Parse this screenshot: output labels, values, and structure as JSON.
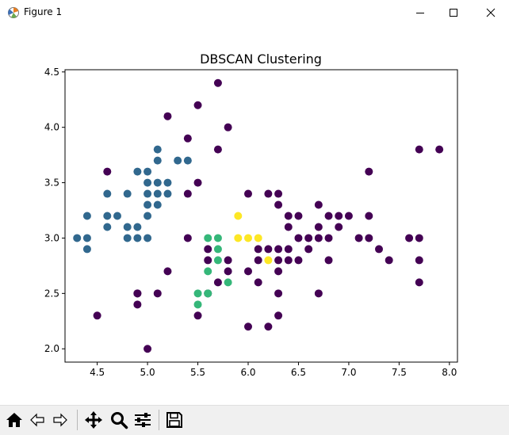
{
  "window": {
    "title": "Figure 1"
  },
  "toolbar": {
    "buttons": [
      "home-icon",
      "back-icon",
      "forward-icon",
      "pan-icon",
      "zoom-icon",
      "configure-subplots-icon",
      "save-icon"
    ]
  },
  "chart_data": {
    "type": "scatter",
    "title": "DBSCAN Clustering",
    "xlabel": "",
    "ylabel": "",
    "xlim": [
      4.18,
      8.08
    ],
    "ylim": [
      1.88,
      4.52
    ],
    "x_ticks": [
      "4.5",
      "5.0",
      "5.5",
      "6.0",
      "6.5",
      "7.0",
      "7.5",
      "8.0"
    ],
    "y_ticks": [
      "2.0",
      "2.5",
      "3.0",
      "3.5",
      "4.0",
      "4.5"
    ],
    "grid": false,
    "colors": {
      "noise": "#440154",
      "cluster0": "#31688e",
      "cluster1": "#35b779",
      "cluster2": "#fde725"
    },
    "series": [
      {
        "color": "#440154",
        "points": [
          [
            5.7,
            4.4
          ],
          [
            5.5,
            4.2
          ],
          [
            5.2,
            4.1
          ],
          [
            5.8,
            4.0
          ],
          [
            5.4,
            3.9
          ],
          [
            5.7,
            3.8
          ],
          [
            7.7,
            3.8
          ],
          [
            7.9,
            3.8
          ],
          [
            4.6,
            3.6
          ],
          [
            7.2,
            3.6
          ],
          [
            5.5,
            3.5
          ],
          [
            5.4,
            3.4
          ],
          [
            6.0,
            3.4
          ],
          [
            6.2,
            3.4
          ],
          [
            6.3,
            3.4
          ],
          [
            6.3,
            3.3
          ],
          [
            6.7,
            3.3
          ],
          [
            6.4,
            3.2
          ],
          [
            6.5,
            3.2
          ],
          [
            6.8,
            3.2
          ],
          [
            6.9,
            3.2
          ],
          [
            7.0,
            3.2
          ],
          [
            7.2,
            3.2
          ],
          [
            6.4,
            3.1
          ],
          [
            6.7,
            3.1
          ],
          [
            6.9,
            3.1
          ],
          [
            4.9,
            2.5
          ],
          [
            5.4,
            3.0
          ],
          [
            6.5,
            3.0
          ],
          [
            6.6,
            3.0
          ],
          [
            6.7,
            3.0
          ],
          [
            6.8,
            3.0
          ],
          [
            7.1,
            3.0
          ],
          [
            7.2,
            3.0
          ],
          [
            7.6,
            3.0
          ],
          [
            7.7,
            3.0
          ],
          [
            5.6,
            2.9
          ],
          [
            6.1,
            2.9
          ],
          [
            6.2,
            2.9
          ],
          [
            6.3,
            2.9
          ],
          [
            6.4,
            2.9
          ],
          [
            6.6,
            2.9
          ],
          [
            7.3,
            2.9
          ],
          [
            5.6,
            2.8
          ],
          [
            5.8,
            2.8
          ],
          [
            6.1,
            2.8
          ],
          [
            6.3,
            2.8
          ],
          [
            6.4,
            2.8
          ],
          [
            6.5,
            2.8
          ],
          [
            6.8,
            2.8
          ],
          [
            7.4,
            2.8
          ],
          [
            7.7,
            2.8
          ],
          [
            5.2,
            2.7
          ],
          [
            5.8,
            2.7
          ],
          [
            6.0,
            2.7
          ],
          [
            6.3,
            2.7
          ],
          [
            5.6,
            2.5
          ],
          [
            6.1,
            2.6
          ],
          [
            5.7,
            2.6
          ],
          [
            7.7,
            2.6
          ],
          [
            4.9,
            2.4
          ],
          [
            5.1,
            2.5
          ],
          [
            6.3,
            2.5
          ],
          [
            6.7,
            2.5
          ],
          [
            4.5,
            2.3
          ],
          [
            5.5,
            2.3
          ],
          [
            6.3,
            2.3
          ],
          [
            6.0,
            2.2
          ],
          [
            6.2,
            2.2
          ],
          [
            5.0,
            2.0
          ],
          [
            4.9,
            2.5
          ]
        ]
      },
      {
        "color": "#31688e",
        "points": [
          [
            5.1,
            3.8
          ],
          [
            5.1,
            3.7
          ],
          [
            5.3,
            3.7
          ],
          [
            5.4,
            3.7
          ],
          [
            4.9,
            3.6
          ],
          [
            5.0,
            3.6
          ],
          [
            5.0,
            3.5
          ],
          [
            5.1,
            3.5
          ],
          [
            5.2,
            3.5
          ],
          [
            4.8,
            3.4
          ],
          [
            5.0,
            3.4
          ],
          [
            5.1,
            3.4
          ],
          [
            5.2,
            3.4
          ],
          [
            4.6,
            3.4
          ],
          [
            5.0,
            3.3
          ],
          [
            5.1,
            3.3
          ],
          [
            4.4,
            3.2
          ],
          [
            4.6,
            3.2
          ],
          [
            4.7,
            3.2
          ],
          [
            5.0,
            3.2
          ],
          [
            4.6,
            3.1
          ],
          [
            4.8,
            3.1
          ],
          [
            4.9,
            3.1
          ],
          [
            4.3,
            3.0
          ],
          [
            4.4,
            3.0
          ],
          [
            4.8,
            3.0
          ],
          [
            4.9,
            3.0
          ],
          [
            5.0,
            3.0
          ],
          [
            4.4,
            2.9
          ]
        ]
      },
      {
        "color": "#35b779",
        "points": [
          [
            5.6,
            3.0
          ],
          [
            5.7,
            3.0
          ],
          [
            5.7,
            2.9
          ],
          [
            5.7,
            2.8
          ],
          [
            5.6,
            2.7
          ],
          [
            5.8,
            2.6
          ],
          [
            5.5,
            2.5
          ],
          [
            5.6,
            2.5
          ],
          [
            5.5,
            2.4
          ]
        ]
      },
      {
        "color": "#fde725",
        "points": [
          [
            5.9,
            3.2
          ],
          [
            5.9,
            3.0
          ],
          [
            6.0,
            3.0
          ],
          [
            6.1,
            3.0
          ],
          [
            6.2,
            2.8
          ]
        ]
      }
    ]
  }
}
